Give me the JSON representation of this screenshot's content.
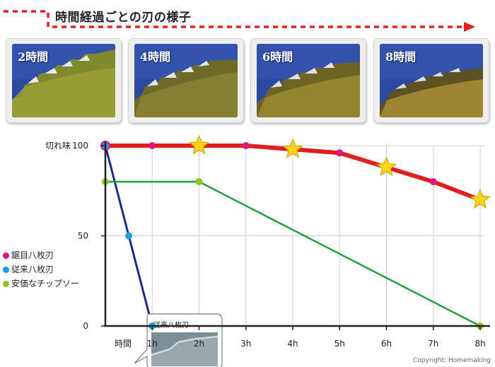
{
  "banner": {
    "title": "時間経過ごとの刃の様子"
  },
  "photos": [
    {
      "label": "2時間"
    },
    {
      "label": "4時間"
    },
    {
      "label": "6時間"
    },
    {
      "label": "8時間"
    }
  ],
  "colors": {
    "accent_red": "#e02020",
    "navy": "#1f2a8a",
    "green": "#22a043",
    "star": "#ffd21e"
  },
  "chart_data": {
    "type": "line",
    "ylabel": "切れ味",
    "xlabel": "時間",
    "categories": [
      "1h",
      "2h",
      "3h",
      "4h",
      "5h",
      "6h",
      "7h",
      "8h"
    ],
    "yticks": [
      0,
      50,
      100
    ],
    "ylim": [
      0,
      100
    ],
    "xlim": [
      0,
      8
    ],
    "series": [
      {
        "name": "鋸目八枚刃",
        "color": "#e02020",
        "marker": "#e0167a",
        "x": [
          0,
          1,
          2,
          3,
          4,
          5,
          6,
          7,
          8
        ],
        "y": [
          100,
          100,
          100,
          100,
          98,
          96,
          88,
          80,
          70
        ],
        "stars": [
          2,
          4,
          6,
          8
        ]
      },
      {
        "name": "従来八枚刃",
        "color": "#1f2a8a",
        "marker": "#1aa0dc",
        "x": [
          0,
          0.5,
          1
        ],
        "y": [
          100,
          50,
          0
        ]
      },
      {
        "name": "安価なチップソー",
        "color": "#22a043",
        "marker": "#8cc820",
        "x": [
          0,
          2,
          8
        ],
        "y": [
          80,
          80,
          0
        ]
      }
    ],
    "callout": {
      "label": "従来八枚刃"
    },
    "copyright": "Copyright: Homemaking"
  }
}
